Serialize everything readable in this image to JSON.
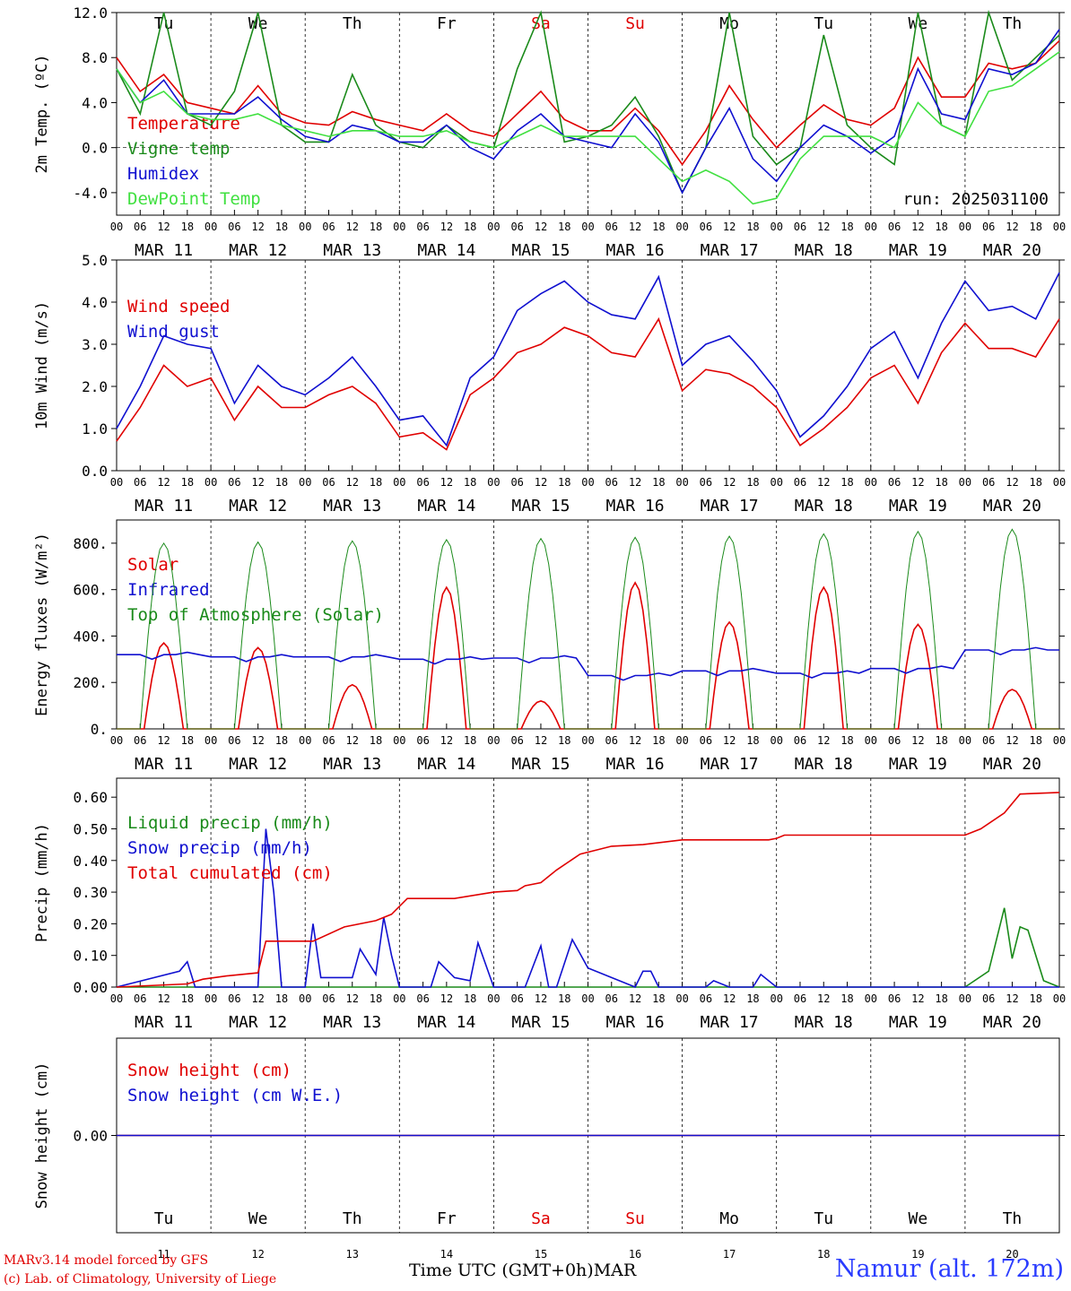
{
  "colors": {
    "red": "#e00000",
    "green": "#1a8a1a",
    "blue": "#1010d0",
    "lime": "#40e040",
    "day_red": "#e00000"
  },
  "days": {
    "weekday_labels": [
      "Tu",
      "We",
      "Th",
      "Fr",
      "Sa",
      "Su",
      "Mo",
      "Tu",
      "We",
      "Th"
    ],
    "weekday_colors": [
      "#000",
      "#000",
      "#000",
      "#000",
      "#e00000",
      "#e00000",
      "#000",
      "#000",
      "#000",
      "#000"
    ],
    "date_labels": [
      "MAR 11",
      "MAR 12",
      "MAR 13",
      "MAR 14",
      "MAR 15",
      "MAR 16",
      "MAR 17",
      "MAR 18",
      "MAR 19",
      "MAR 20"
    ],
    "day_numbers": [
      "11",
      "12",
      "13",
      "14",
      "15",
      "16",
      "17",
      "18",
      "19",
      "20"
    ],
    "hour_labels": [
      "00",
      "06",
      "12",
      "18"
    ],
    "end_hour_label": "00"
  },
  "footer": {
    "model_line": "MARv3.14 model forced by GFS",
    "copyright_line": "(c) Lab. of Climatology, University of Liege",
    "axis_title": "Time UTC (GMT+0h)",
    "month": "MAR",
    "station": "Namur (alt. 172m)"
  },
  "chart_data": [
    {
      "type": "line",
      "ylabel": "2m Temp. (ºC)",
      "ylim": [
        -6,
        12
      ],
      "yticks": [
        -4,
        0,
        4,
        8,
        12
      ],
      "ytick_labels": [
        "-4.0",
        "0.0",
        "4.0",
        "8.0",
        "12.0"
      ],
      "zero_line": true,
      "annotation": "run: 2025031100",
      "x_unit": "hours since MAR 11 00 UTC",
      "series": [
        {
          "name": "Temperature",
          "color": "#e00000",
          "x": [
            0,
            6,
            12,
            18,
            24,
            30,
            36,
            42,
            48,
            54,
            60,
            66,
            72,
            78,
            84,
            90,
            96,
            102,
            108,
            114,
            120,
            126,
            132,
            138,
            144,
            150,
            156,
            162,
            168,
            174,
            180,
            186,
            192,
            198,
            204,
            210,
            216,
            222,
            228,
            234,
            240
          ],
          "y": [
            8,
            5,
            6.5,
            4,
            3.5,
            3,
            5.5,
            3,
            2.2,
            2,
            3.2,
            2.5,
            2,
            1.5,
            3,
            1.5,
            1,
            3,
            5,
            2.5,
            1.5,
            1.5,
            3.5,
            1.5,
            -1.5,
            1.5,
            5.5,
            2.5,
            0,
            2,
            3.8,
            2.5,
            2,
            3.5,
            8,
            4.5,
            4.5,
            7.5,
            7,
            7.5,
            9.5
          ]
        },
        {
          "name": "Vigne temp",
          "color": "#1a8a1a",
          "x": [
            0,
            6,
            12,
            18,
            24,
            30,
            36,
            42,
            48,
            54,
            60,
            66,
            72,
            78,
            84,
            90,
            96,
            102,
            108,
            114,
            120,
            126,
            132,
            138,
            144,
            150,
            156,
            162,
            168,
            174,
            180,
            186,
            192,
            198,
            204,
            210,
            216,
            222,
            228,
            234,
            240
          ],
          "y": [
            7,
            3,
            12,
            3,
            2,
            5,
            12,
            2,
            0.5,
            0.5,
            6.5,
            2,
            0.5,
            0,
            2,
            0.5,
            0,
            7,
            12,
            0.5,
            1,
            2,
            4.5,
            1,
            -4,
            0,
            12,
            1,
            -1.5,
            0,
            10,
            2,
            0,
            -1.5,
            12,
            2,
            1,
            12,
            6,
            8,
            10
          ]
        },
        {
          "name": "Humidex",
          "color": "#1010d0",
          "x": [
            0,
            6,
            12,
            18,
            24,
            30,
            36,
            42,
            48,
            54,
            60,
            66,
            72,
            78,
            84,
            90,
            96,
            102,
            108,
            114,
            120,
            126,
            132,
            138,
            144,
            150,
            156,
            162,
            168,
            174,
            180,
            186,
            192,
            198,
            204,
            210,
            216,
            222,
            228,
            234,
            240
          ],
          "y": [
            7,
            4,
            6,
            3,
            3,
            3,
            4.5,
            2.5,
            1,
            0.5,
            2,
            1.5,
            0.5,
            0.5,
            2,
            0,
            -1,
            1.5,
            3,
            1,
            0.5,
            0,
            3,
            0.5,
            -4,
            0,
            3.5,
            -1,
            -3,
            0,
            2,
            1,
            -0.5,
            1,
            7,
            3,
            2.5,
            7,
            6.5,
            7.5,
            10.5
          ]
        },
        {
          "name": "DewPoint Temp",
          "color": "#40e040",
          "x": [
            0,
            6,
            12,
            18,
            24,
            30,
            36,
            42,
            48,
            54,
            60,
            66,
            72,
            78,
            84,
            90,
            96,
            102,
            108,
            114,
            120,
            126,
            132,
            138,
            144,
            150,
            156,
            162,
            168,
            174,
            180,
            186,
            192,
            198,
            204,
            210,
            216,
            222,
            228,
            234,
            240
          ],
          "y": [
            7,
            4,
            5,
            3,
            2.5,
            2.5,
            3,
            2,
            1.5,
            1,
            1.5,
            1.5,
            1,
            1,
            1.5,
            0.5,
            0,
            1,
            2,
            1,
            1,
            1,
            1,
            -1,
            -3,
            -2,
            -3,
            -5,
            -4.5,
            -1,
            1,
            1,
            1,
            0,
            4,
            2,
            1,
            5,
            5.5,
            7,
            8.5
          ]
        }
      ]
    },
    {
      "type": "line",
      "ylabel": "10m Wind (m/s)",
      "ylim": [
        0,
        5
      ],
      "yticks": [
        0,
        1,
        2,
        3,
        4,
        5
      ],
      "ytick_labels": [
        "0.0",
        "1.0",
        "2.0",
        "3.0",
        "4.0",
        "5.0"
      ],
      "series": [
        {
          "name": "Wind speed",
          "color": "#e00000",
          "x": [
            0,
            6,
            12,
            18,
            24,
            30,
            36,
            42,
            48,
            54,
            60,
            66,
            72,
            78,
            84,
            90,
            96,
            102,
            108,
            114,
            120,
            126,
            132,
            138,
            144,
            150,
            156,
            162,
            168,
            174,
            180,
            186,
            192,
            198,
            204,
            210,
            216,
            222,
            228,
            234,
            240
          ],
          "y": [
            0.7,
            1.5,
            2.5,
            2,
            2.2,
            1.2,
            2,
            1.5,
            1.5,
            1.8,
            2,
            1.6,
            0.8,
            0.9,
            0.5,
            1.8,
            2.2,
            2.8,
            3,
            3.4,
            3.2,
            2.8,
            2.7,
            3.6,
            1.9,
            2.4,
            2.3,
            2,
            1.5,
            0.6,
            1,
            1.5,
            2.2,
            2.5,
            1.6,
            2.8,
            3.5,
            2.9,
            2.9,
            2.7,
            3.6
          ]
        },
        {
          "name": "Wind gust",
          "color": "#1010d0",
          "x": [
            0,
            6,
            12,
            18,
            24,
            30,
            36,
            42,
            48,
            54,
            60,
            66,
            72,
            78,
            84,
            90,
            96,
            102,
            108,
            114,
            120,
            126,
            132,
            138,
            144,
            150,
            156,
            162,
            168,
            174,
            180,
            186,
            192,
            198,
            204,
            210,
            216,
            222,
            228,
            234,
            240
          ],
          "y": [
            1,
            2,
            3.2,
            3,
            2.9,
            1.6,
            2.5,
            2,
            1.8,
            2.2,
            2.7,
            2,
            1.2,
            1.3,
            0.6,
            2.2,
            2.7,
            3.8,
            4.2,
            4.5,
            4,
            3.7,
            3.6,
            4.6,
            2.5,
            3,
            3.2,
            2.6,
            1.9,
            0.8,
            1.3,
            2,
            2.9,
            3.3,
            2.2,
            3.5,
            4.5,
            3.8,
            3.9,
            3.6,
            4.7
          ]
        }
      ]
    },
    {
      "type": "line",
      "ylabel": "Energy fluxes (W/m²)",
      "ylim": [
        0,
        900
      ],
      "yticks": [
        0,
        200,
        400,
        600,
        800
      ],
      "ytick_labels": [
        "0.",
        "200.",
        "400.",
        "600.",
        "800."
      ],
      "series": [
        {
          "name": "Solar",
          "color": "#e00000",
          "peaks": [
            370,
            350,
            190,
            610,
            120,
            630,
            460,
            610,
            450,
            170
          ]
        },
        {
          "name": "Infrared",
          "color": "#1010d0",
          "levels": [
            320,
            310,
            310,
            300,
            305,
            230,
            250,
            240,
            260,
            340
          ]
        },
        {
          "name": "Top of Atmosphere (Solar)",
          "color": "#1a8a1a",
          "peaks": [
            800,
            805,
            810,
            815,
            820,
            825,
            830,
            840,
            850,
            860
          ]
        }
      ]
    },
    {
      "type": "line",
      "ylabel": "Precip (mm/h)",
      "ylim": [
        0,
        0.66
      ],
      "yticks": [
        0,
        0.1,
        0.2,
        0.3,
        0.4,
        0.5,
        0.6
      ],
      "ytick_labels": [
        "0.00",
        "0.10",
        "0.20",
        "0.30",
        "0.40",
        "0.50",
        "0.60"
      ],
      "series": [
        {
          "name": "Liquid precip (mm/h)",
          "color": "#1a8a1a",
          "x": [
            0,
            216,
            222,
            226,
            228,
            230,
            232,
            236,
            240
          ],
          "y": [
            0,
            0,
            0.05,
            0.25,
            0.09,
            0.19,
            0.18,
            0.02,
            0
          ]
        },
        {
          "name": "Snow precip (mm/h)",
          "color": "#1010d0",
          "x": [
            0,
            16,
            18,
            20,
            24,
            36,
            38,
            40,
            42,
            48,
            50,
            52,
            54,
            60,
            62,
            66,
            68,
            70,
            72,
            80,
            82,
            86,
            90,
            92,
            96,
            104,
            108,
            110,
            112,
            116,
            120,
            126,
            132,
            134,
            136,
            138,
            140,
            150,
            152,
            156,
            162,
            164,
            168,
            210,
            240
          ],
          "y": [
            0,
            0.05,
            0.08,
            0,
            0,
            0,
            0.5,
            0.3,
            0,
            0,
            0.2,
            0.03,
            0.03,
            0.03,
            0.12,
            0.04,
            0.22,
            0.1,
            0,
            0,
            0.08,
            0.03,
            0.02,
            0.14,
            0,
            0,
            0.13,
            0,
            0,
            0.15,
            0.06,
            0.03,
            0,
            0.05,
            0.05,
            0,
            0,
            0,
            0.02,
            0,
            0,
            0.04,
            0,
            0,
            0
          ]
        },
        {
          "name": "Total cumulated (cm)",
          "color": "#e00000",
          "x": [
            0,
            18,
            22,
            28,
            36,
            38,
            44,
            50,
            58,
            66,
            70,
            74,
            86,
            96,
            102,
            104,
            108,
            112,
            118,
            126,
            134,
            144,
            150,
            156,
            166,
            168,
            170,
            174,
            180,
            192,
            204,
            216,
            220,
            226,
            230,
            240
          ],
          "y": [
            0,
            0.01,
            0.025,
            0.035,
            0.045,
            0.145,
            0.145,
            0.145,
            0.19,
            0.21,
            0.23,
            0.28,
            0.28,
            0.3,
            0.305,
            0.32,
            0.33,
            0.37,
            0.42,
            0.445,
            0.45,
            0.465,
            0.465,
            0.465,
            0.465,
            0.47,
            0.48,
            0.48,
            0.48,
            0.48,
            0.48,
            0.48,
            0.5,
            0.55,
            0.61,
            0.615
          ]
        }
      ]
    },
    {
      "type": "line",
      "ylabel": "Snow height (cm)",
      "ylim": [
        -1,
        1
      ],
      "yticks": [
        0
      ],
      "ytick_labels": [
        "0.00"
      ],
      "series": [
        {
          "name": "Snow height (cm)",
          "color": "#e00000",
          "x": [
            0,
            240
          ],
          "y": [
            0,
            0
          ]
        },
        {
          "name": "Snow height (cm W.E.)",
          "color": "#1010d0",
          "x": [
            0,
            240
          ],
          "y": [
            0,
            0
          ]
        }
      ]
    }
  ]
}
